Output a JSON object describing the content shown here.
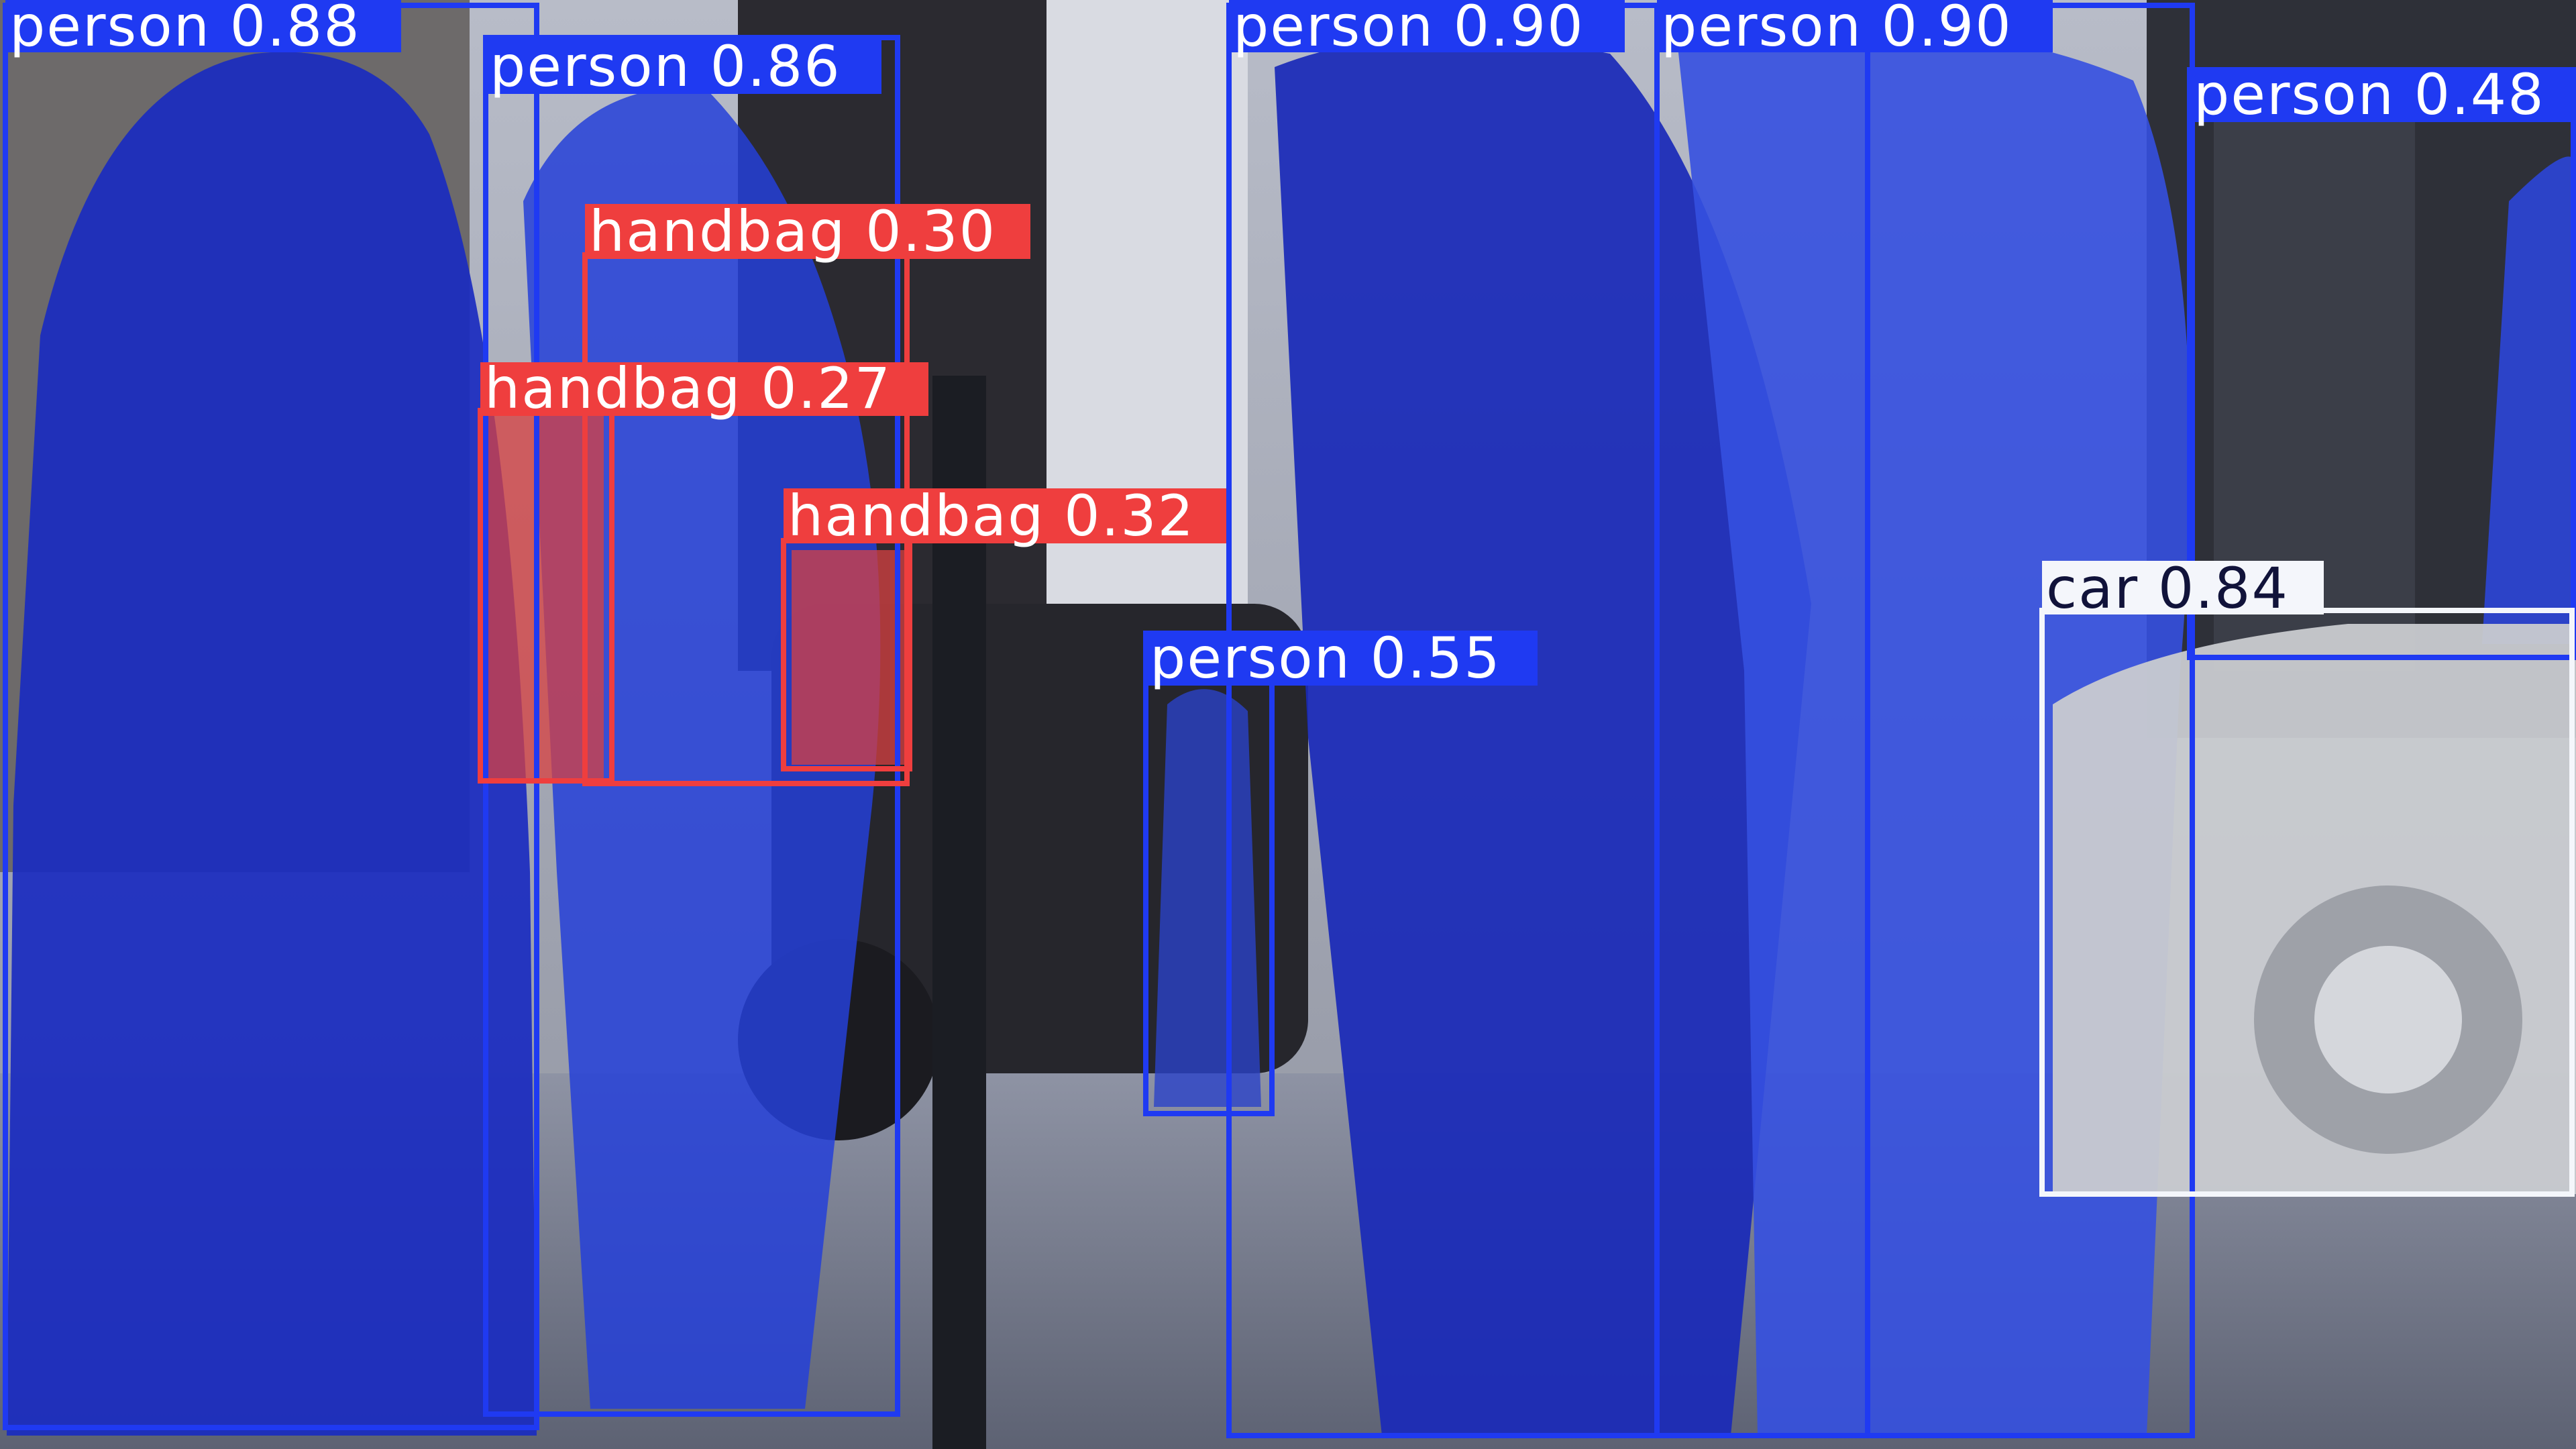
{
  "colors": {
    "person": "#1f3af2",
    "handbag": "#ef3e3e",
    "car": "#f4f6fb",
    "label_text_light": "#ffffff",
    "label_text_dark": "#11133a"
  },
  "detections": [
    {
      "id": "person-1",
      "class": "person",
      "label": "person 0.88"
    },
    {
      "id": "person-2",
      "class": "person",
      "label": "person 0.86"
    },
    {
      "id": "person-3",
      "class": "person",
      "label": "person 0.90"
    },
    {
      "id": "person-4",
      "class": "person",
      "label": "person 0.90"
    },
    {
      "id": "person-5",
      "class": "person",
      "label": "person 0.48"
    },
    {
      "id": "person-6",
      "class": "person",
      "label": "person 0.55"
    },
    {
      "id": "handbag-1",
      "class": "handbag",
      "label": "handbag 0.30"
    },
    {
      "id": "handbag-2",
      "class": "handbag",
      "label": "handbag 0.27"
    },
    {
      "id": "handbag-3",
      "class": "handbag",
      "label": "handbag 0.32"
    },
    {
      "id": "car-1",
      "class": "car",
      "label": "car 0.84"
    }
  ]
}
